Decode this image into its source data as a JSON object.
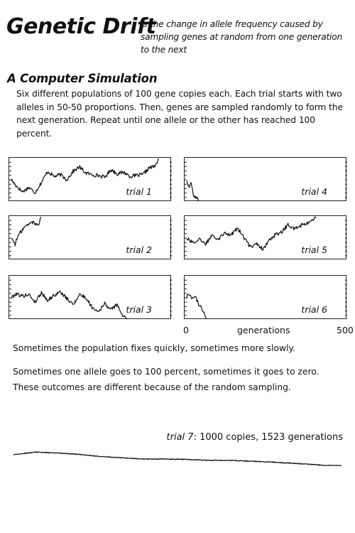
{
  "header": {
    "title": "Genetic Drift",
    "definition": "is the change in allele frequency caused by sampling genes at random from one generation to the next"
  },
  "simulation": {
    "heading": "A Computer Simulation",
    "description": "Six different populations of 100 gene copies each.  Each trial starts with two alleles in 50-50 proportions.  Then, genes are sampled randomly to form the next generation.  Repeat until one allele or the other has reached 100 percent."
  },
  "notes": {
    "fix_speed": "Sometimes the population fixes quickly, sometimes more slowly.",
    "outcome_line1": "Sometimes one allele goes to 100 percent, sometimes it goes to zero.",
    "outcome_line2": "These outcomes are different because of the random sampling."
  },
  "trial7": {
    "name": "trial 7",
    "detail": ": 1000 copies, 1523 generations"
  },
  "chart_data": [
    {
      "type": "line",
      "x_axis": {
        "min_label": "0",
        "label": "generations",
        "max_label": "500",
        "range": [
          0,
          500
        ]
      },
      "y_range": [
        0,
        100
      ],
      "series": [
        {
          "name": "trial 1",
          "fixation_generation": 465,
          "outcome": 100,
          "values": [
            [
              0,
              50
            ],
            [
              15,
              36
            ],
            [
              35,
              22
            ],
            [
              55,
              32
            ],
            [
              75,
              20
            ],
            [
              95,
              44
            ],
            [
              115,
              70
            ],
            [
              135,
              58
            ],
            [
              155,
              62
            ],
            [
              175,
              50
            ],
            [
              195,
              70
            ],
            [
              215,
              80
            ],
            [
              235,
              66
            ],
            [
              255,
              62
            ],
            [
              275,
              60
            ],
            [
              295,
              56
            ],
            [
              315,
              74
            ],
            [
              335,
              64
            ],
            [
              355,
              68
            ],
            [
              375,
              58
            ],
            [
              395,
              60
            ],
            [
              415,
              62
            ],
            [
              435,
              78
            ],
            [
              455,
              82
            ],
            [
              465,
              100
            ]
          ]
        },
        {
          "name": "trial 2",
          "fixation_generation": 93,
          "outcome": 100,
          "values": [
            [
              0,
              50
            ],
            [
              12,
              36
            ],
            [
              22,
              56
            ],
            [
              35,
              70
            ],
            [
              45,
              78
            ],
            [
              55,
              82
            ],
            [
              65,
              88
            ],
            [
              75,
              84
            ],
            [
              85,
              80
            ],
            [
              93,
              100
            ]
          ]
        },
        {
          "name": "trial 3",
          "fixation_generation": 365,
          "outcome": 0,
          "values": [
            [
              0,
              50
            ],
            [
              15,
              60
            ],
            [
              35,
              54
            ],
            [
              55,
              58
            ],
            [
              75,
              40
            ],
            [
              95,
              62
            ],
            [
              115,
              44
            ],
            [
              135,
              56
            ],
            [
              155,
              64
            ],
            [
              175,
              48
            ],
            [
              195,
              34
            ],
            [
              215,
              58
            ],
            [
              235,
              50
            ],
            [
              255,
              28
            ],
            [
              275,
              18
            ],
            [
              295,
              36
            ],
            [
              315,
              22
            ],
            [
              335,
              36
            ],
            [
              345,
              12
            ],
            [
              355,
              8
            ],
            [
              365,
              0
            ]
          ]
        },
        {
          "name": "trial 4",
          "fixation_generation": 38,
          "outcome": 0,
          "values": [
            [
              0,
              50
            ],
            [
              8,
              30
            ],
            [
              14,
              44
            ],
            [
              20,
              16
            ],
            [
              28,
              10
            ],
            [
              38,
              0
            ]
          ]
        },
        {
          "name": "trial 5",
          "fixation_generation": 408,
          "outcome": 100,
          "values": [
            [
              0,
              50
            ],
            [
              20,
              40
            ],
            [
              40,
              46
            ],
            [
              60,
              36
            ],
            [
              80,
              58
            ],
            [
              100,
              48
            ],
            [
              120,
              64
            ],
            [
              140,
              56
            ],
            [
              160,
              74
            ],
            [
              180,
              52
            ],
            [
              200,
              30
            ],
            [
              220,
              38
            ],
            [
              240,
              24
            ],
            [
              260,
              44
            ],
            [
              280,
              58
            ],
            [
              300,
              64
            ],
            [
              320,
              82
            ],
            [
              340,
              70
            ],
            [
              360,
              80
            ],
            [
              380,
              84
            ],
            [
              400,
              92
            ],
            [
              408,
              100
            ]
          ]
        },
        {
          "name": "trial 6",
          "fixation_generation": 62,
          "outcome": 0,
          "values": [
            [
              0,
              50
            ],
            [
              6,
              62
            ],
            [
              12,
              56
            ],
            [
              20,
              48
            ],
            [
              28,
              54
            ],
            [
              36,
              36
            ],
            [
              44,
              30
            ],
            [
              52,
              20
            ],
            [
              62,
              0
            ]
          ]
        }
      ]
    },
    {
      "type": "line",
      "series": [
        {
          "name": "trial 7",
          "population_copies": 1000,
          "generations": 1523,
          "outcome": 0,
          "values": [
            [
              0,
              50
            ],
            [
              100,
              62
            ],
            [
              200,
              58
            ],
            [
              300,
              52
            ],
            [
              400,
              42
            ],
            [
              500,
              36
            ],
            [
              600,
              30
            ],
            [
              700,
              30
            ],
            [
              800,
              28
            ],
            [
              900,
              24
            ],
            [
              1000,
              24
            ],
            [
              1100,
              20
            ],
            [
              1200,
              16
            ],
            [
              1300,
              10
            ],
            [
              1400,
              4
            ],
            [
              1450,
              0
            ],
            [
              1523,
              0
            ]
          ]
        }
      ]
    }
  ]
}
